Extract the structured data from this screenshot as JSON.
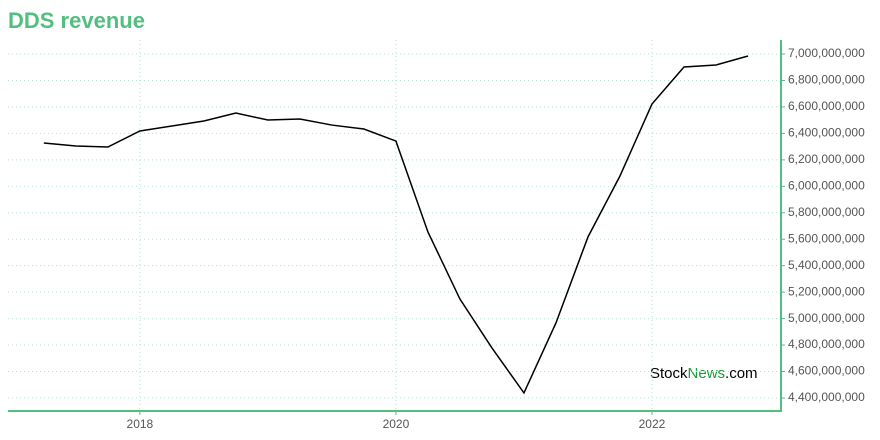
{
  "chart_data": {
    "type": "line",
    "title": "DDS revenue",
    "watermark": [
      "Stock",
      "News",
      ".com"
    ],
    "x": [
      2017.25,
      2017.5,
      2017.75,
      2018,
      2018.25,
      2018.5,
      2018.75,
      2019,
      2019.25,
      2019.5,
      2019.75,
      2020,
      2020.25,
      2020.5,
      2020.75,
      2021,
      2021.25,
      2021.5,
      2021.75,
      2022,
      2022.25,
      2022.5,
      2022.75
    ],
    "series": [
      {
        "color": "#000000",
        "values": [
          6327000000,
          6305000000,
          6297000000,
          6418000000,
          6456000000,
          6494000000,
          6554000000,
          6501000000,
          6509000000,
          6463000000,
          6433000000,
          6342000000,
          5655000000,
          5148000000,
          4778000000,
          4438000000,
          4967000000,
          5617000000,
          6078000000,
          6622000000,
          6902000000,
          6917000000,
          6985000000
        ]
      }
    ],
    "xlim": [
      2016.97,
      2023
    ],
    "xticks": [
      2018,
      2020,
      2022
    ],
    "ylim": [
      4309000000,
      7106000000
    ],
    "yticks": [
      {
        "value": 4400000000,
        "label": "4,400,000,000"
      },
      {
        "value": 4600000000,
        "label": "4,600,000,000"
      },
      {
        "value": 4800000000,
        "label": "4,800,000,000"
      },
      {
        "value": 5000000000,
        "label": "5,000,000,000"
      },
      {
        "value": 5200000000,
        "label": "5,200,000,000"
      },
      {
        "value": 5400000000,
        "label": "5,400,000,000"
      },
      {
        "value": 5600000000,
        "label": "5,600,000,000"
      },
      {
        "value": 5800000000,
        "label": "5,800,000,000"
      },
      {
        "value": 6000000000,
        "label": "6,000,000,000"
      },
      {
        "value": 6200000000,
        "label": "6,200,000,000"
      },
      {
        "value": 6400000000,
        "label": "6,400,000,000"
      },
      {
        "value": 6600000000,
        "label": "6,600,000,000"
      },
      {
        "value": 6800000000,
        "label": "6,800,000,000"
      },
      {
        "value": 7000000000,
        "label": "7,000,000,000"
      }
    ],
    "grid": true,
    "axis_color": "#52bf80"
  }
}
